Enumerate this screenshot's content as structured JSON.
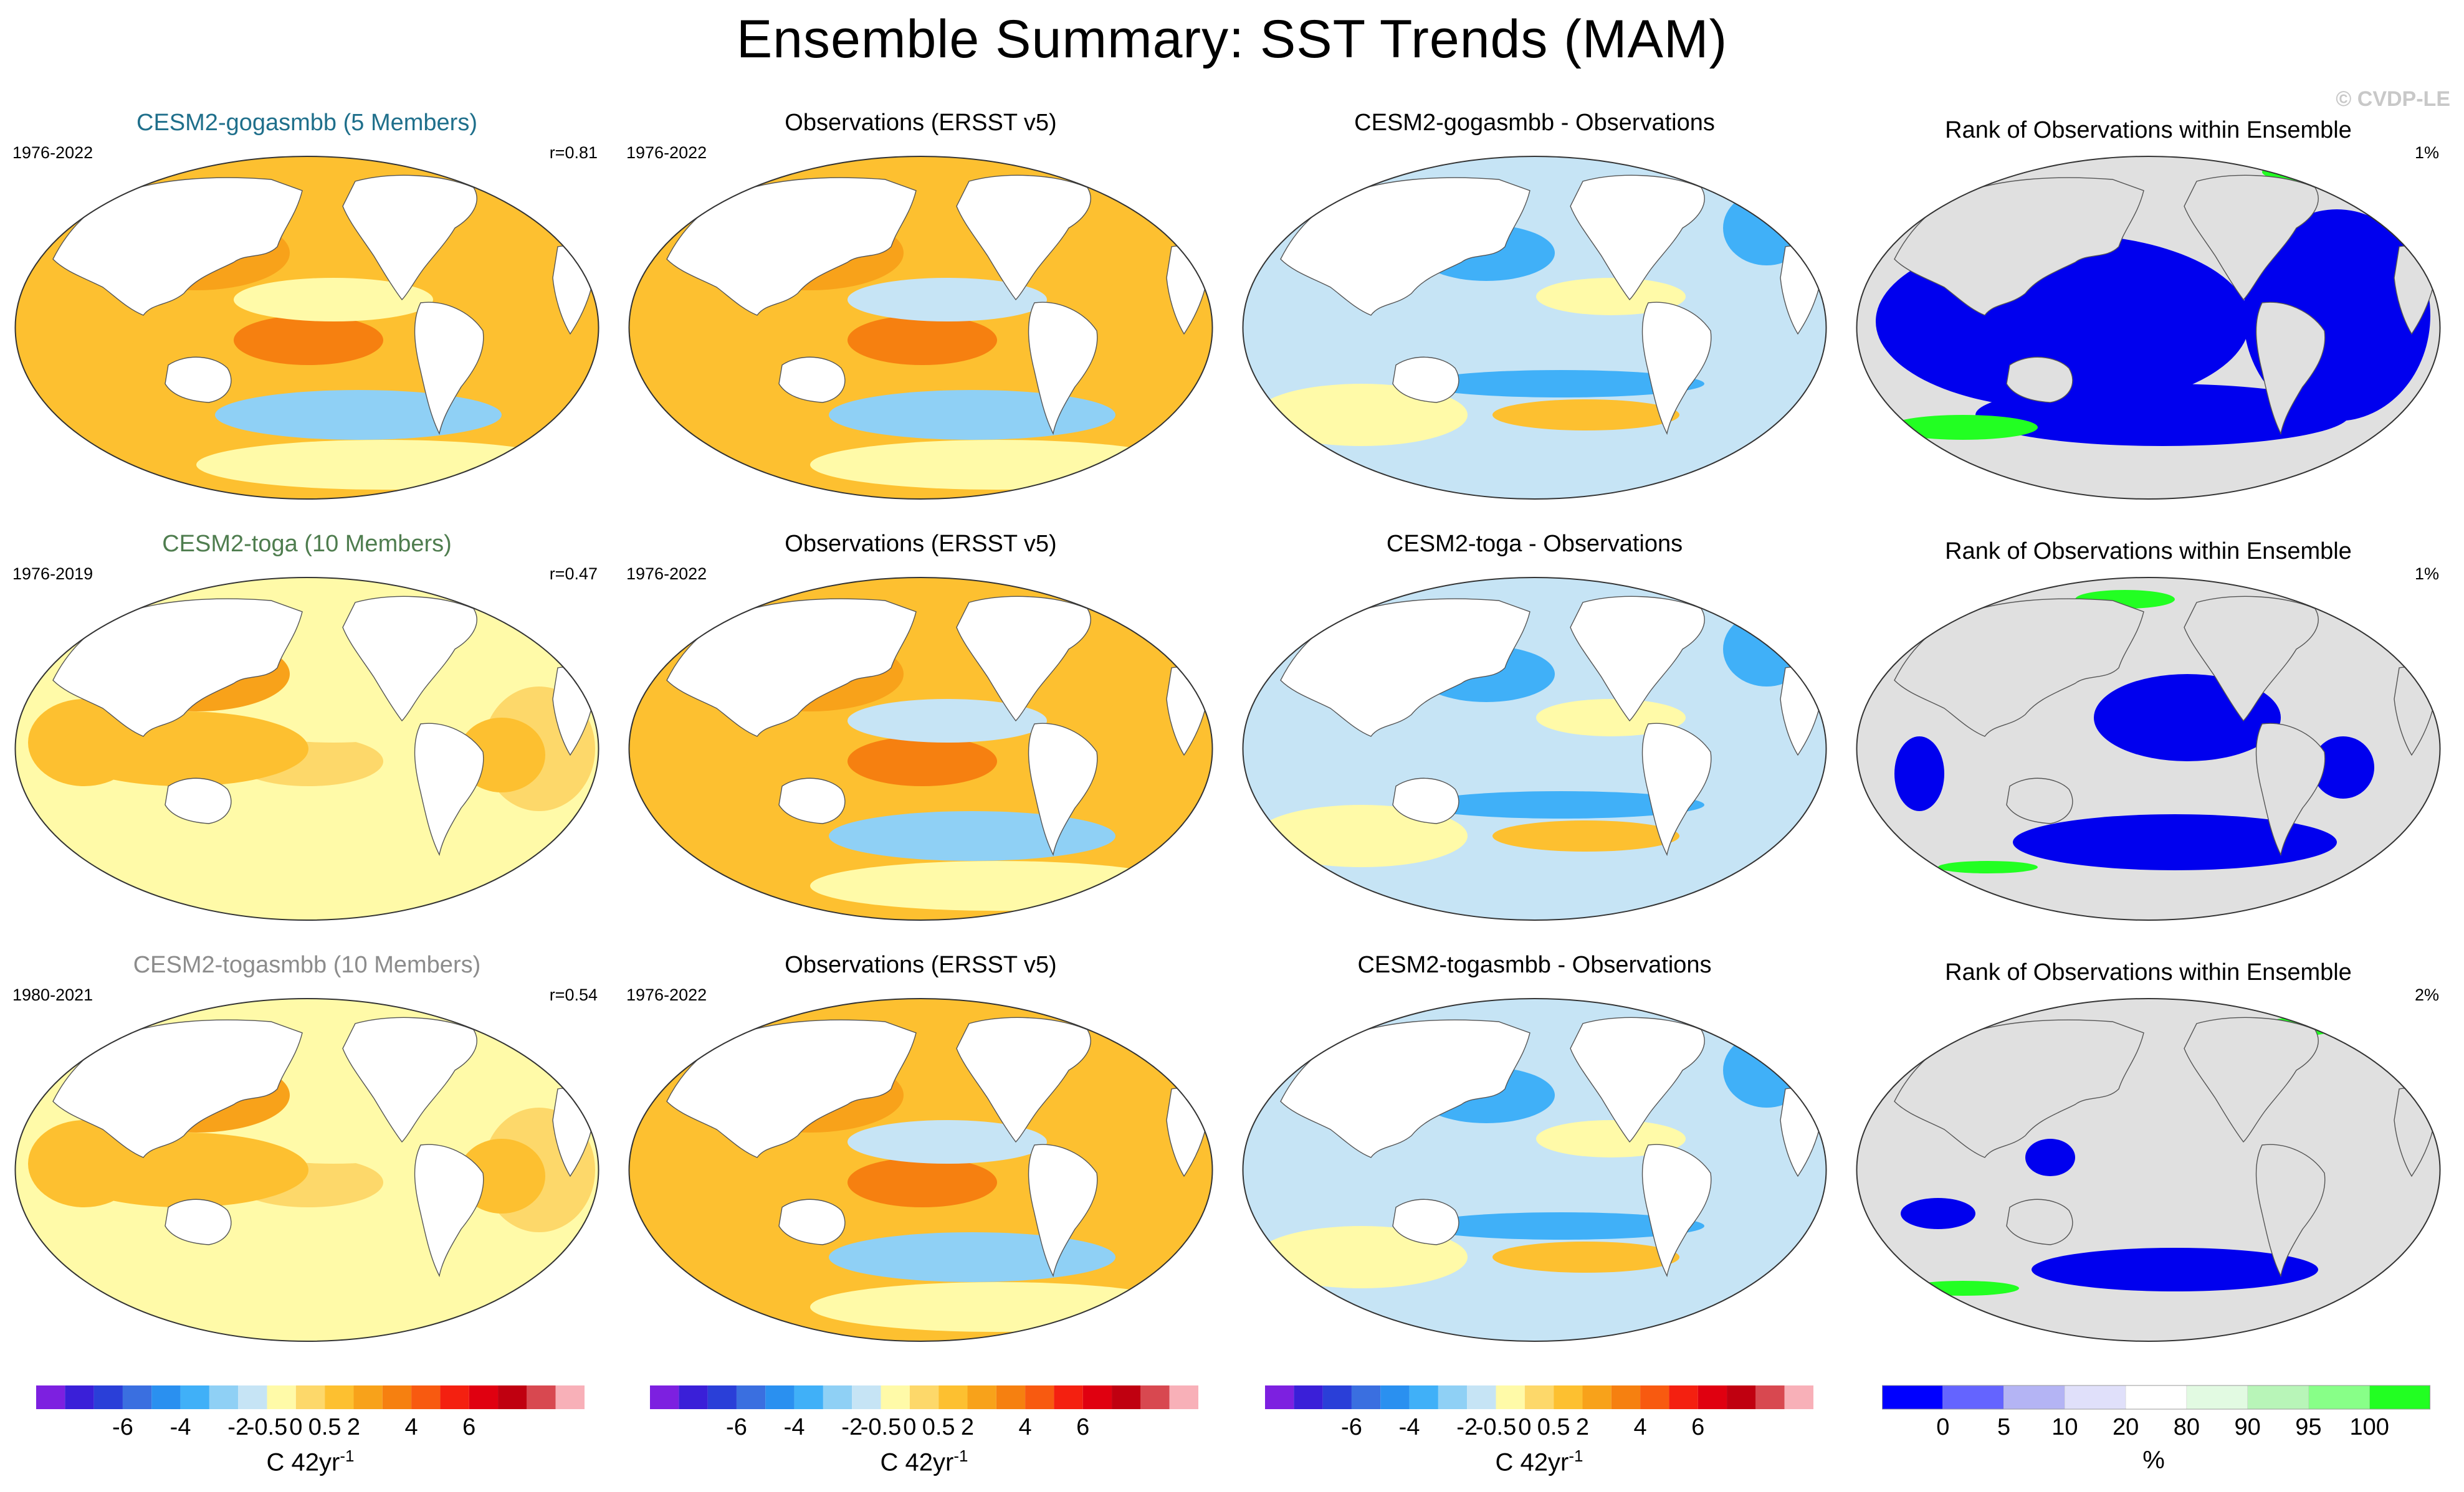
{
  "title": "Ensemble Summary: SST Trends (MAM)",
  "credit": "© CVDP-LE",
  "colors": {
    "model_title_1": "#1f6f8b",
    "model_title_2": "#4f7d4f",
    "model_title_3": "#8c8c8c",
    "land": "#ffffff",
    "rank_land": "#e0e0e0",
    "rank_low": "#0000ee",
    "rank_high": "#22ff22"
  },
  "rows": [
    {
      "model": {
        "title": "CESM2-gogasmbb (5 Members)",
        "period": "1976-2022",
        "corr": "r=0.81"
      },
      "obs": {
        "title": "Observations (ERSST v5)",
        "period": "1976-2022"
      },
      "diff": {
        "title": "CESM2-gogasmbb - Observations"
      },
      "rank": {
        "title": "Rank of Observations within Ensemble",
        "pct": "1%"
      }
    },
    {
      "model": {
        "title": "CESM2-toga (10 Members)",
        "period": "1976-2019",
        "corr": "r=0.47"
      },
      "obs": {
        "title": "Observations (ERSST v5)",
        "period": "1976-2022"
      },
      "diff": {
        "title": "CESM2-toga - Observations"
      },
      "rank": {
        "title": "Rank of Observations within Ensemble",
        "pct": "1%"
      }
    },
    {
      "model": {
        "title": "CESM2-togasmbb (10 Members)",
        "period": "1980-2021",
        "corr": "r=0.54"
      },
      "obs": {
        "title": "Observations (ERSST v5)",
        "period": "1976-2022"
      },
      "diff": {
        "title": "CESM2-togasmbb - Observations"
      },
      "rank": {
        "title": "Rank of Observations within Ensemble",
        "pct": "2%"
      }
    }
  ],
  "trend_colorbar": {
    "labels": [
      "-6",
      "-4",
      "-2",
      "-0.5",
      "0",
      "0.5",
      "2",
      "4",
      "6"
    ],
    "unit": "C 42yr",
    "unit_sup": "-1",
    "colors": [
      "#7d20e0",
      "#3a1fd8",
      "#2a3fd8",
      "#3a6fe0",
      "#2a90f0",
      "#40b0f8",
      "#8fd0f5",
      "#c6e4f5",
      "#fffaa8",
      "#fdd86a",
      "#fdc030",
      "#f8a21a",
      "#f68010",
      "#f85a10",
      "#f42010",
      "#e00010",
      "#c00010",
      "#d84850",
      "#f8b0b8"
    ]
  },
  "rank_colorbar": {
    "labels": [
      "0",
      "5",
      "10",
      "20",
      "80",
      "90",
      "95",
      "100"
    ],
    "unit": "%",
    "colors": [
      "#0000ff",
      "#6464ff",
      "#b4b4f4",
      "#e0e0fa",
      "#ffffff",
      "#e2fae2",
      "#b8f5b8",
      "#88ff88",
      "#22ff22"
    ]
  }
}
